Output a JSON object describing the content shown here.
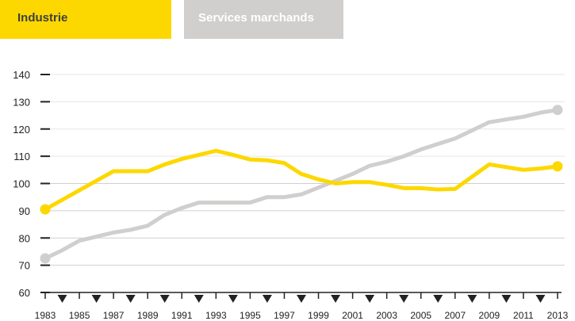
{
  "legend": {
    "industrie": "Industrie",
    "services": "Services marchands"
  },
  "colors": {
    "industrie": "#fcd800",
    "services": "#d0cfcd",
    "axis": "#222222",
    "grid": "#e6e6e6"
  },
  "chart_data": {
    "type": "line",
    "title": "",
    "xlabel": "",
    "ylabel": "",
    "ylim": [
      60,
      140
    ],
    "yticks": [
      60,
      70,
      80,
      90,
      100,
      110,
      120,
      130,
      140
    ],
    "xlim": [
      1983,
      2013
    ],
    "xticks": [
      1983,
      1985,
      1987,
      1989,
      1991,
      1993,
      1995,
      1997,
      1999,
      2001,
      2003,
      2005,
      2007,
      2009,
      2011,
      2013
    ],
    "legend_position": "top-left",
    "x": [
      1983,
      1984,
      1985,
      1986,
      1987,
      1988,
      1989,
      1990,
      1991,
      1992,
      1993,
      1994,
      1995,
      1996,
      1997,
      1998,
      1999,
      2000,
      2001,
      2002,
      2003,
      2004,
      2005,
      2006,
      2007,
      2008,
      2009,
      2010,
      2011,
      2012,
      2013
    ],
    "series": [
      {
        "name": "Industrie",
        "values": [
          90.5,
          94,
          97.5,
          101,
          104.5,
          104.5,
          104.5,
          107,
          109,
          110.5,
          112,
          110.5,
          108.8,
          108.5,
          107.5,
          103.5,
          101.5,
          100,
          100.5,
          100.5,
          99.5,
          98.3,
          98.3,
          97.8,
          98,
          102.5,
          107,
          106,
          105,
          105.5,
          106.3
        ]
      },
      {
        "name": "Services marchands",
        "values": [
          72.5,
          75.5,
          79,
          80.5,
          82,
          83,
          84.5,
          88.5,
          91,
          93,
          93,
          93,
          93,
          95,
          95,
          96,
          98.5,
          101,
          103.5,
          106.5,
          108,
          110,
          112.5,
          114.5,
          116.5,
          119.5,
          122.5,
          123.5,
          124.5,
          126,
          127
        ]
      }
    ]
  }
}
